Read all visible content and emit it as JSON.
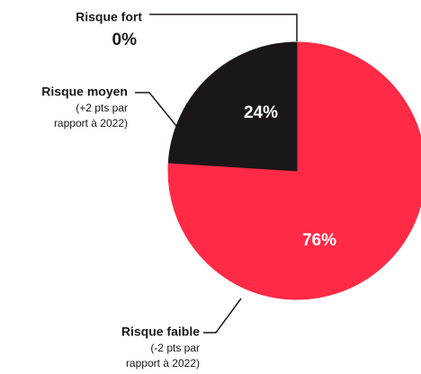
{
  "chart_data": {
    "type": "pie",
    "categories": [
      "Risque fort",
      "Risque moyen",
      "Risque faible"
    ],
    "values": [
      0,
      24,
      76
    ],
    "value_labels": [
      "0%",
      "24%",
      "76%"
    ],
    "colors": [
      "#1b1719",
      "#1b1719",
      "#ff2a45"
    ],
    "annotations": [
      {
        "category": 1,
        "lines": [
          "(+2 pts par",
          "rapport à 2022)"
        ]
      },
      {
        "category": 2,
        "lines": [
          "(-2 pts par",
          "rapport à 2022)"
        ]
      }
    ]
  }
}
